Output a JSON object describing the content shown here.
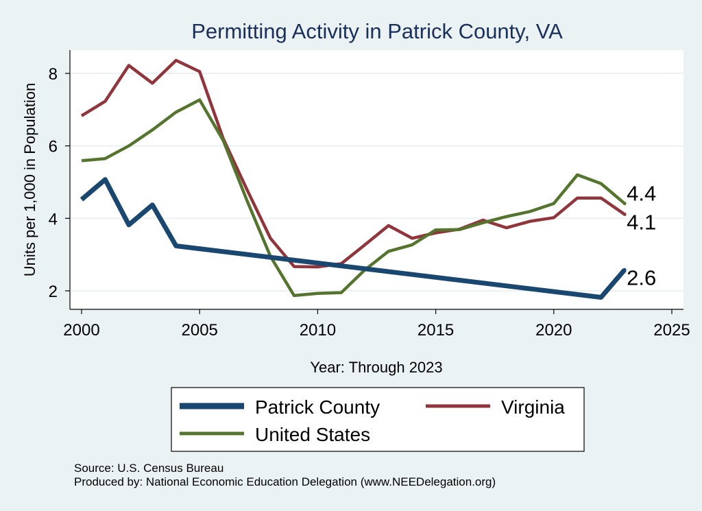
{
  "chart_data": {
    "type": "line",
    "title": "Permitting Activity in Patrick County, VA",
    "xlabel": "Year: Through 2023",
    "ylabel": "Units per 1,000 in Population",
    "xlim": [
      2000,
      2025
    ],
    "ylim": [
      1.55,
      8.7
    ],
    "x_ticks": [
      2000,
      2005,
      2010,
      2015,
      2020,
      2025
    ],
    "x_tick_labels": [
      "2000",
      "2005",
      "2010",
      "2015",
      "2020",
      "2025"
    ],
    "y_ticks": [
      2,
      4,
      6,
      8
    ],
    "y_tick_labels": [
      "2",
      "4",
      "6",
      "8"
    ],
    "grid": true,
    "legend_position": "bottom",
    "series": [
      {
        "name": "Patrick County",
        "color": "#1a476f",
        "end_label": "2.6",
        "x": [
          2000,
          2001,
          2002,
          2003,
          2004,
          2022,
          2023
        ],
        "values": [
          4.52,
          5.07,
          3.82,
          4.37,
          3.24,
          1.82,
          2.58
        ]
      },
      {
        "name": "Virginia",
        "color": "#90353b",
        "end_label": "4.1",
        "x": [
          2000,
          2001,
          2002,
          2003,
          2004,
          2005,
          2006,
          2007,
          2008,
          2009,
          2010,
          2011,
          2012,
          2013,
          2014,
          2015,
          2016,
          2017,
          2018,
          2019,
          2020,
          2021,
          2022,
          2023
        ],
        "values": [
          6.83,
          7.23,
          8.22,
          7.73,
          8.36,
          8.05,
          6.2,
          4.8,
          3.45,
          2.67,
          2.66,
          2.75,
          3.27,
          3.8,
          3.45,
          3.6,
          3.7,
          3.95,
          3.74,
          3.92,
          4.02,
          4.56,
          4.56,
          4.11
        ]
      },
      {
        "name": "United States",
        "color": "#55752f",
        "end_label": "4.4",
        "x": [
          2000,
          2001,
          2002,
          2003,
          2004,
          2005,
          2006,
          2007,
          2008,
          2009,
          2010,
          2011,
          2012,
          2013,
          2014,
          2015,
          2016,
          2017,
          2018,
          2019,
          2020,
          2021,
          2022,
          2023
        ],
        "values": [
          5.59,
          5.65,
          6.0,
          6.44,
          6.93,
          7.27,
          6.15,
          4.5,
          2.95,
          1.87,
          1.93,
          1.95,
          2.58,
          3.09,
          3.27,
          3.68,
          3.69,
          3.88,
          4.05,
          4.19,
          4.41,
          5.2,
          4.96,
          4.41
        ]
      }
    ]
  },
  "source": {
    "line1": "Source: U.S. Census Bureau",
    "line2": "Produced by: National Economic Education Delegation (www.NEEDelegation.org)"
  }
}
